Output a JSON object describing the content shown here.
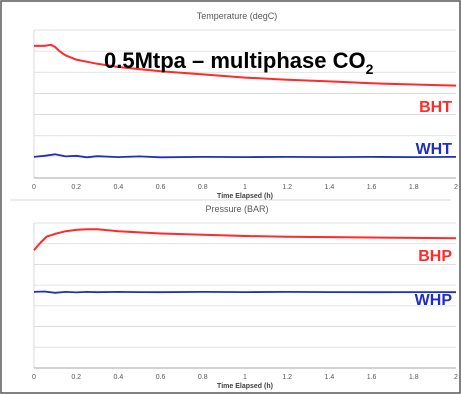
{
  "overlay": {
    "title_main": "0.5Mtpa – multiphase CO",
    "title_sub": "2"
  },
  "colors": {
    "bottomhole": "#ff2a2a",
    "wellhead": "#1f2fbf",
    "grid": "#d9d9d9",
    "border": "#a6a6a6",
    "text": "#595959"
  },
  "chart_data": [
    {
      "type": "line",
      "title": "Temperature (degC)",
      "xlabel": "Time Elapsed (h)",
      "ylabel": "",
      "xlim": [
        0,
        2
      ],
      "ylim": [
        0,
        7
      ],
      "x_ticks": [
        "0",
        "0.2",
        "0.4",
        "0.6",
        "0.8",
        "1",
        "1.2",
        "1.4",
        "1.6",
        "1.8",
        "2"
      ],
      "y_ticks": [],
      "grid": true,
      "series": [
        {
          "name": "BHT",
          "color": "#ff2a2a",
          "x": [
            0,
            0.05,
            0.08,
            0.1,
            0.12,
            0.15,
            0.2,
            0.3,
            0.4,
            0.5,
            0.6,
            0.8,
            1.0,
            1.2,
            1.4,
            1.6,
            1.8,
            2.0
          ],
          "y": [
            6.25,
            6.25,
            6.3,
            6.2,
            6.0,
            5.8,
            5.6,
            5.4,
            5.25,
            5.15,
            5.05,
            4.9,
            4.75,
            4.65,
            4.57,
            4.48,
            4.42,
            4.37
          ]
        },
        {
          "name": "WHT",
          "color": "#1f2fbf",
          "x": [
            0,
            0.05,
            0.1,
            0.15,
            0.2,
            0.25,
            0.3,
            0.4,
            0.5,
            0.6,
            0.8,
            1.0,
            1.2,
            1.4,
            1.6,
            1.8,
            2.0
          ],
          "y": [
            1.0,
            1.05,
            1.12,
            1.02,
            1.05,
            0.98,
            1.03,
            0.99,
            1.02,
            0.98,
            1.0,
            0.99,
            1.0,
            0.99,
            1.0,
            0.99,
            1.0
          ]
        }
      ]
    },
    {
      "type": "line",
      "title": "Pressure (BAR)",
      "xlabel": "Time Elapsed (h)",
      "ylabel": "",
      "xlim": [
        0,
        2
      ],
      "ylim": [
        0,
        8
      ],
      "x_ticks": [
        "0",
        "0.2",
        "0.4",
        "0.6",
        "0.8",
        "1",
        "1.2",
        "1.4",
        "1.6",
        "1.8",
        "2"
      ],
      "y_ticks": [],
      "grid": true,
      "series": [
        {
          "name": "BHP",
          "color": "#ff2a2a",
          "x": [
            0,
            0.03,
            0.06,
            0.1,
            0.15,
            0.2,
            0.25,
            0.3,
            0.35,
            0.4,
            0.5,
            0.6,
            0.8,
            1.0,
            1.2,
            1.4,
            1.6,
            1.8,
            2.0
          ],
          "y": [
            6.5,
            6.9,
            7.25,
            7.4,
            7.55,
            7.62,
            7.66,
            7.65,
            7.6,
            7.55,
            7.48,
            7.42,
            7.35,
            7.28,
            7.24,
            7.22,
            7.2,
            7.18,
            7.16
          ]
        },
        {
          "name": "WHP",
          "color": "#1f2fbf",
          "x": [
            0,
            0.05,
            0.1,
            0.15,
            0.2,
            0.25,
            0.3,
            0.4,
            0.5,
            0.6,
            0.8,
            1.0,
            1.2,
            1.4,
            1.6,
            1.8,
            2.0
          ],
          "y": [
            4.2,
            4.22,
            4.15,
            4.2,
            4.17,
            4.2,
            4.18,
            4.2,
            4.19,
            4.18,
            4.2,
            4.19,
            4.2,
            4.19,
            4.18,
            4.19,
            4.18
          ]
        }
      ]
    }
  ]
}
